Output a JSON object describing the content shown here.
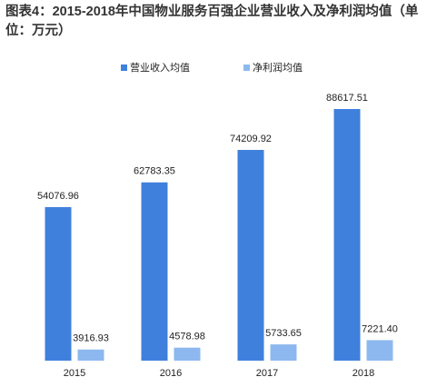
{
  "chart_data": {
    "type": "bar",
    "title": "图表4：2015-2018年中国物业服务百强企业营业收入及净利润均值（单位：万元）",
    "categories": [
      "2015",
      "2016",
      "2017",
      "2018"
    ],
    "series": [
      {
        "name": "营业收入均值",
        "color": "#3f80dd",
        "values": [
          54076.96,
          62783.35,
          74209.92,
          88617.51
        ]
      },
      {
        "name": "净利润均值",
        "color": "#8db8ef",
        "values": [
          3916.93,
          4578.98,
          5733.65,
          7221.4
        ],
        "value_labels": [
          "3916.93",
          "4578.98",
          "5733.65",
          "7221.40"
        ]
      }
    ]
  }
}
